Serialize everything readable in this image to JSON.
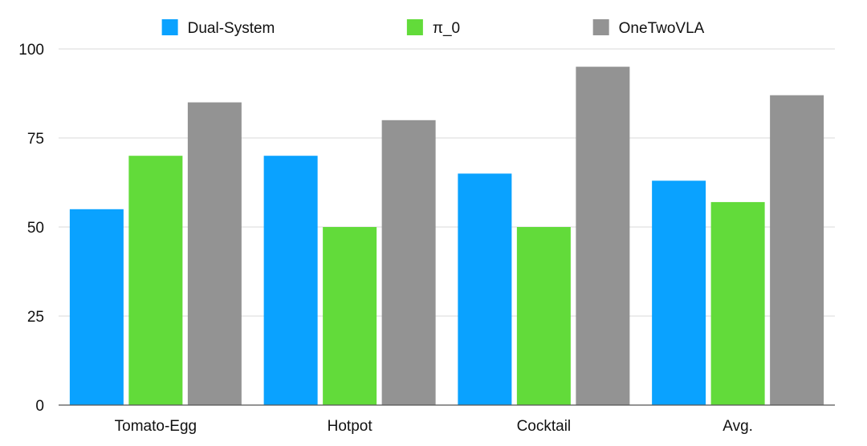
{
  "chart_data": {
    "type": "bar",
    "categories": [
      "Tomato-Egg",
      "Hotpot",
      "Cocktail",
      "Avg."
    ],
    "series": [
      {
        "name": "Dual-System",
        "color": "#0aa2ff",
        "values": [
          55,
          70,
          65,
          63
        ]
      },
      {
        "name": "π_0",
        "color": "#62db3a",
        "values": [
          70,
          50,
          50,
          57
        ]
      },
      {
        "name": "OneTwoVLA",
        "color": "#939393",
        "values": [
          85,
          80,
          95,
          87
        ]
      }
    ],
    "ylim": [
      0,
      100
    ],
    "yticks": [
      0,
      25,
      50,
      75,
      100
    ],
    "grid": true,
    "legend_position": "top-center",
    "title": "",
    "xlabel": "",
    "ylabel": ""
  }
}
